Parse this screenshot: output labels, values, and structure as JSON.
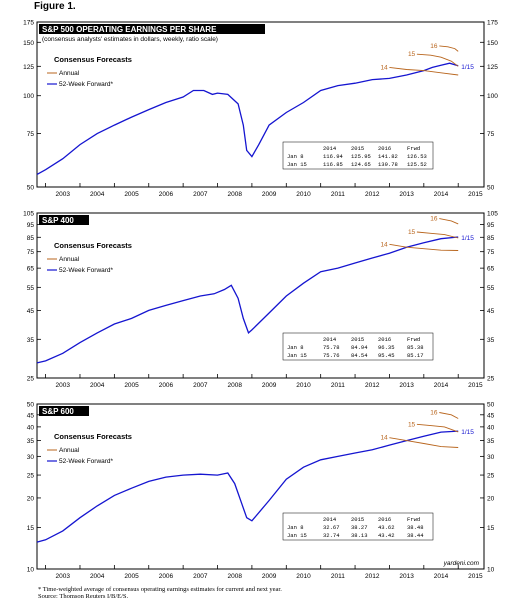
{
  "figure_label": "Figure 1.",
  "footnote_lines": [
    "* Time-weighted average of consensus operating earnings estimates for current and next year.",
    "Source: Thomson Reuters I/B/E/S."
  ],
  "colors": {
    "forward": "#1515d0",
    "annual": "#b8651d",
    "frame": "#000000",
    "panel_title_bg": "#000000",
    "panel_title_fg": "#ffffff"
  },
  "chart_data": [
    {
      "type": "line",
      "title": "S&P 500 OPERATING EARNINGS PER SHARE",
      "subtitle": "(consensus analysts' estimates in dollars, weekly, ratio scale)",
      "y_scale": "log",
      "ylim": [
        50,
        175
      ],
      "y_ticks": [
        175,
        150,
        125,
        100,
        75,
        50
      ],
      "x_ticks": [
        "2003",
        "2004",
        "2005",
        "2006",
        "2007",
        "2008",
        "2009",
        "2010",
        "2011",
        "2012",
        "2013",
        "2014",
        "2015"
      ],
      "legend_title": "Consensus Forecasts",
      "legend": [
        "Annual",
        "52-Week Forward*"
      ],
      "forward_label": "1/15",
      "annual_labels": [
        "14",
        "15",
        "16"
      ],
      "table": {
        "columns": [
          "",
          "2014",
          "2015",
          "2016",
          "Frwd"
        ],
        "rows": [
          [
            "Jan 8",
            "116.94",
            "125.95",
            "141.82",
            "126.53"
          ],
          [
            "Jan 15",
            "116.85",
            "124.65",
            "139.78",
            "125.52"
          ]
        ]
      },
      "series": [
        {
          "name": "52-Week Forward*",
          "x": [
            2002.75,
            2003.0,
            2003.5,
            2004.0,
            2004.5,
            2005.0,
            2005.5,
            2006.0,
            2006.5,
            2007.0,
            2007.3,
            2007.6,
            2007.85,
            2008.0,
            2008.3,
            2008.6,
            2008.75,
            2008.85,
            2009.0,
            2009.2,
            2009.5,
            2010.0,
            2010.5,
            2011.0,
            2011.5,
            2012.0,
            2012.5,
            2013.0,
            2013.5,
            2014.0,
            2014.25,
            2014.5,
            2014.75,
            2015.0
          ],
          "y": [
            55,
            57,
            62,
            69,
            75,
            80,
            85,
            90,
            95,
            99,
            104,
            104,
            101,
            102,
            101,
            94,
            80,
            66,
            63,
            69,
            80,
            88,
            95,
            104,
            108,
            110,
            113,
            114,
            117,
            121,
            124,
            126,
            128,
            125.5
          ]
        },
        {
          "name": "Annual 14",
          "x": [
            2013.0,
            2013.5,
            2014.0,
            2014.5,
            2015.0
          ],
          "y": [
            124,
            122,
            121,
            119,
            117
          ]
        },
        {
          "name": "Annual 15",
          "x": [
            2013.8,
            2014.2,
            2014.5,
            2014.8,
            2015.0
          ],
          "y": [
            137,
            136,
            134,
            130,
            125
          ]
        },
        {
          "name": "Annual 16",
          "x": [
            2014.45,
            2014.7,
            2014.9,
            2015.0
          ],
          "y": [
            146,
            145,
            143,
            140
          ]
        }
      ]
    },
    {
      "type": "line",
      "title": "S&P 400",
      "y_scale": "log",
      "ylim": [
        25,
        105
      ],
      "y_ticks": [
        105,
        95,
        85,
        75,
        65,
        55,
        45,
        35,
        25
      ],
      "x_ticks": [
        "2003",
        "2004",
        "2005",
        "2006",
        "2007",
        "2008",
        "2009",
        "2010",
        "2011",
        "2012",
        "2013",
        "2014",
        "2015"
      ],
      "legend_title": "Consensus Forecasts",
      "legend": [
        "Annual",
        "52-Week Forward*"
      ],
      "forward_label": "1/15",
      "annual_labels": [
        "14",
        "15",
        "16"
      ],
      "table": {
        "columns": [
          "",
          "2014",
          "2015",
          "2016",
          "Frwd"
        ],
        "rows": [
          [
            "Jan 8",
            "75.78",
            "84.94",
            "96.35",
            "85.38"
          ],
          [
            "Jan 15",
            "75.76",
            "84.54",
            "95.45",
            "85.17"
          ]
        ]
      },
      "series": [
        {
          "name": "52-Week Forward*",
          "x": [
            2002.75,
            2003.0,
            2003.5,
            2004.0,
            2004.5,
            2005.0,
            2005.5,
            2006.0,
            2006.5,
            2007.0,
            2007.5,
            2007.9,
            2008.2,
            2008.4,
            2008.6,
            2008.75,
            2008.9,
            2009.0,
            2009.5,
            2010.0,
            2010.5,
            2011.0,
            2011.5,
            2012.0,
            2012.5,
            2013.0,
            2013.5,
            2014.0,
            2014.5,
            2015.0
          ],
          "y": [
            28.5,
            29,
            31,
            34,
            37,
            40,
            42,
            45,
            47,
            49,
            51,
            52,
            54,
            56,
            50,
            42,
            37,
            38,
            44,
            51,
            57,
            63,
            65,
            68,
            71,
            74,
            78,
            81,
            84,
            85.2
          ]
        },
        {
          "name": "Annual 14",
          "x": [
            2013.0,
            2013.5,
            2014.0,
            2014.5,
            2015.0
          ],
          "y": [
            80,
            78,
            77,
            76,
            75.8
          ]
        },
        {
          "name": "Annual 15",
          "x": [
            2013.8,
            2014.2,
            2014.6,
            2015.0
          ],
          "y": [
            89,
            88,
            87,
            84.5
          ]
        },
        {
          "name": "Annual 16",
          "x": [
            2014.45,
            2014.8,
            2015.0
          ],
          "y": [
            100,
            98,
            95.5
          ]
        }
      ]
    },
    {
      "type": "line",
      "title": "S&P 600",
      "y_scale": "log",
      "ylim": [
        10,
        50
      ],
      "y_ticks": [
        50,
        45,
        40,
        35,
        30,
        25,
        20,
        15,
        10
      ],
      "x_ticks": [
        "2003",
        "2004",
        "2005",
        "2006",
        "2007",
        "2008",
        "2009",
        "2010",
        "2011",
        "2012",
        "2013",
        "2014",
        "2015"
      ],
      "legend_title": "Consensus Forecasts",
      "legend": [
        "Annual",
        "52-Week Forward*"
      ],
      "forward_label": "1/15",
      "annual_labels": [
        "14",
        "15",
        "16"
      ],
      "watermark": "yardeni.com",
      "table": {
        "columns": [
          "",
          "2014",
          "2015",
          "2016",
          "Frwd"
        ],
        "rows": [
          [
            "Jan 8",
            "32.67",
            "38.27",
            "43.62",
            "38.48"
          ],
          [
            "Jan 15",
            "32.74",
            "38.13",
            "43.42",
            "38.44"
          ]
        ]
      },
      "series": [
        {
          "name": "52-Week Forward*",
          "x": [
            2002.75,
            2003.0,
            2003.5,
            2004.0,
            2004.5,
            2005.0,
            2005.5,
            2006.0,
            2006.5,
            2007.0,
            2007.5,
            2008.0,
            2008.3,
            2008.5,
            2008.7,
            2008.85,
            2009.0,
            2009.5,
            2010.0,
            2010.5,
            2011.0,
            2011.5,
            2012.0,
            2012.5,
            2013.0,
            2013.5,
            2014.0,
            2014.5,
            2015.0
          ],
          "y": [
            13,
            13.3,
            14.5,
            16.5,
            18.5,
            20.5,
            22,
            23.5,
            24.5,
            25,
            25.2,
            25,
            25.5,
            23,
            19,
            16.5,
            16,
            19.5,
            24,
            27,
            29,
            30,
            31,
            32,
            33.5,
            35,
            36.5,
            38,
            38.4
          ]
        },
        {
          "name": "Annual 14",
          "x": [
            2013.0,
            2013.5,
            2014.0,
            2014.5,
            2015.0
          ],
          "y": [
            36,
            35,
            34,
            33,
            32.7
          ]
        },
        {
          "name": "Annual 15",
          "x": [
            2013.8,
            2014.2,
            2014.6,
            2015.0
          ],
          "y": [
            41,
            40.5,
            40,
            38.1
          ]
        },
        {
          "name": "Annual 16",
          "x": [
            2014.45,
            2014.8,
            2015.0
          ],
          "y": [
            46,
            45,
            43.4
          ]
        }
      ]
    }
  ]
}
